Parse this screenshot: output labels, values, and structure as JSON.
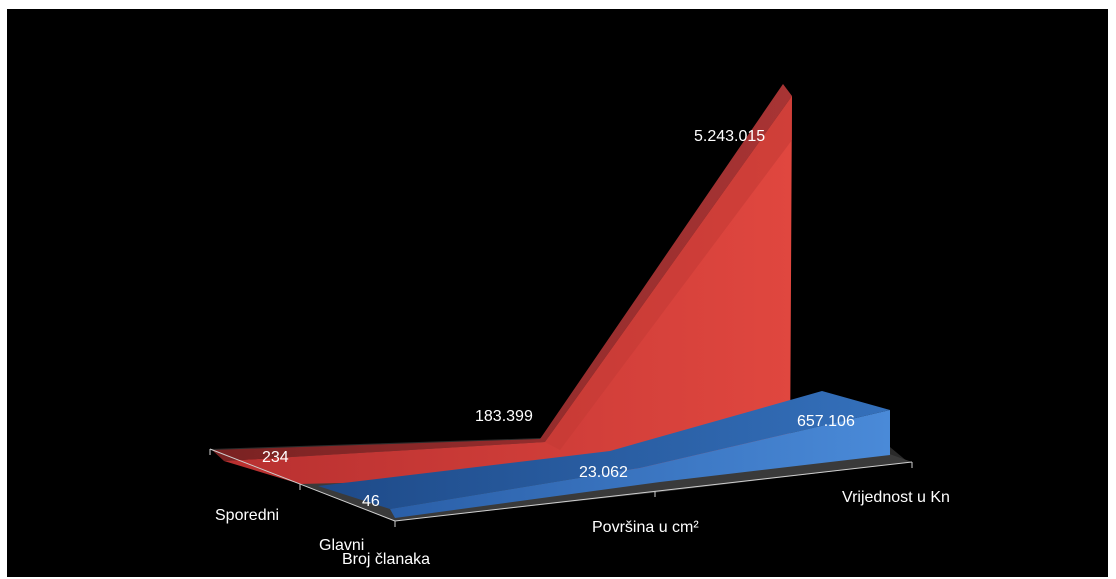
{
  "chart_data": {
    "type": "area",
    "subtype": "3d-area",
    "categories": [
      "Broj članaka",
      "Površina u cm²",
      "Vrijednost u Kn"
    ],
    "series": [
      {
        "name": "Sporedni",
        "values": [
          234,
          183399,
          5243015
        ],
        "color": "#d63a3a"
      },
      {
        "name": "Glavni",
        "values": [
          46,
          23062,
          657106
        ],
        "color": "#3a78c8"
      }
    ],
    "data_labels": {
      "Sporedni": [
        "234",
        "183.399",
        "5.243.015"
      ],
      "Glavni": [
        "46",
        "23.062",
        "657.106"
      ]
    },
    "title": "",
    "xlabel": "",
    "ylabel": "",
    "background": "#000000",
    "grid": false,
    "legend": "none"
  }
}
